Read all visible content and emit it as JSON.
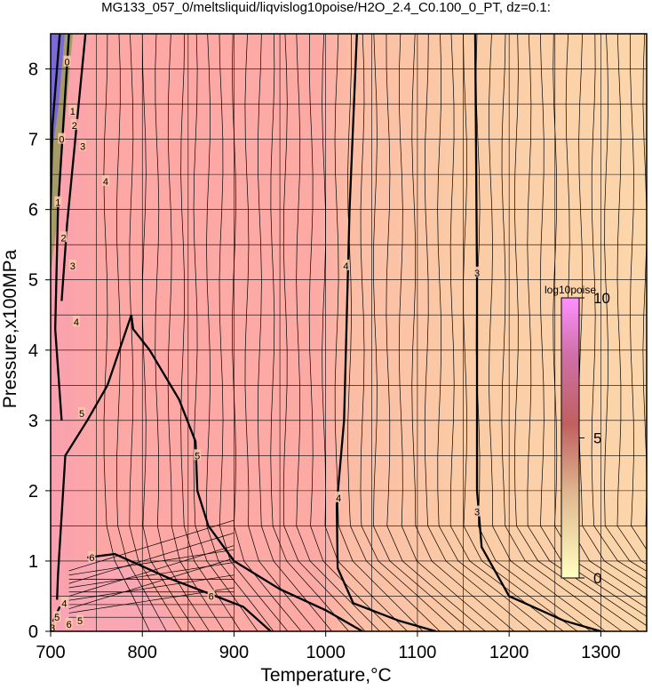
{
  "chart_data": {
    "type": "contour",
    "title": "MG133_057_0/meltsliquid/liqvislog10poise/H2O_2.4_C0.100_0_PT, dz=0.1:",
    "xlabel": "Temperature,°C",
    "ylabel": "Pressure,x100MPa",
    "xlim": [
      700,
      1350
    ],
    "ylim": [
      0,
      8.5
    ],
    "x_ticks": [
      "700",
      "800",
      "900",
      "1000",
      "1100",
      "1200",
      "1300"
    ],
    "y_ticks": [
      "0",
      "1",
      "2",
      "3",
      "4",
      "5",
      "6",
      "7",
      "8"
    ],
    "x_gridlines": [
      700,
      750,
      800,
      850,
      900,
      950,
      1000,
      1050,
      1100,
      1150,
      1200,
      1250,
      1300,
      1350
    ],
    "y_gridlines": [
      0,
      0.5,
      1,
      1.5,
      2,
      2.5,
      3,
      3.5,
      4,
      4.5,
      5,
      5.5,
      6,
      6.5,
      7,
      7.5,
      8
    ],
    "grid": true,
    "contour_interval": 0.1,
    "colorbar": {
      "label": "log10poise",
      "ticks": [
        "0",
        "5",
        "10"
      ],
      "range": [
        0,
        10
      ],
      "placement": "inside-right",
      "colors": [
        "#ffffc0",
        "#c06060",
        "#c04090",
        "#6000a0"
      ]
    },
    "colors": {
      "fill_warm": "#fbd2a6",
      "fill_pink": "#fdaaa5",
      "fill_low": "#f6a6bb",
      "fill_high": "#7b6ad6",
      "contour": "#000000"
    },
    "bold_contours": [
      {
        "level": "6",
        "points": [
          [
            704,
            0.0
          ],
          [
            703,
            0.15
          ],
          [
            710,
            0.35
          ]
        ]
      },
      {
        "level": "5",
        "points": [
          [
            707,
            0.45
          ],
          [
            708,
            0.8
          ],
          [
            716,
            2.5
          ],
          [
            740,
            3.0
          ],
          [
            762,
            3.5
          ],
          [
            788,
            4.5
          ],
          [
            790,
            4.3
          ],
          [
            808,
            4.0
          ],
          [
            840,
            3.3
          ],
          [
            858,
            2.7
          ],
          [
            860,
            2.0
          ],
          [
            872,
            1.5
          ],
          [
            900,
            1.0
          ],
          [
            950,
            0.6
          ],
          [
            1000,
            0.3
          ],
          [
            1040,
            0.0
          ]
        ]
      },
      {
        "level": "6",
        "points": [
          [
            740,
            1.05
          ],
          [
            770,
            1.1
          ],
          [
            830,
            0.75
          ],
          [
            880,
            0.5
          ],
          [
            910,
            0.35
          ],
          [
            940,
            0.0
          ]
        ]
      },
      {
        "level": "4",
        "points": [
          [
            1034,
            8.5
          ],
          [
            1026,
            6.0
          ],
          [
            1020,
            3.0
          ],
          [
            1012,
            1.8
          ],
          [
            1013,
            0.9
          ],
          [
            1030,
            0.4
          ],
          [
            1080,
            0.15
          ],
          [
            1120,
            0.0
          ]
        ]
      },
      {
        "level": "3",
        "points": [
          [
            1163,
            8.5
          ],
          [
            1165,
            5.0
          ],
          [
            1165,
            2.0
          ],
          [
            1170,
            1.2
          ],
          [
            1200,
            0.5
          ],
          [
            1260,
            0.15
          ],
          [
            1300,
            0.0
          ]
        ]
      },
      {
        "level": "4",
        "points": [
          [
            720,
            8.5
          ],
          [
            708,
            6.0
          ],
          [
            705,
            4.3
          ],
          [
            712,
            3.0
          ]
        ]
      },
      {
        "level": "3",
        "points": [
          [
            738,
            8.5
          ],
          [
            718,
            5.8
          ],
          [
            712,
            4.7
          ]
        ]
      },
      {
        "level": "2",
        "points": [
          [
            710,
            8.5
          ],
          [
            702,
            7.2
          ],
          [
            700,
            6.0
          ]
        ]
      }
    ],
    "contour_labels": [
      {
        "text": "4",
        "x": 1022,
        "y": 5.2
      },
      {
        "text": "4",
        "x": 1014,
        "y": 1.9
      },
      {
        "text": "3",
        "x": 1165,
        "y": 5.1
      },
      {
        "text": "3",
        "x": 1165,
        "y": 1.7
      },
      {
        "text": "5",
        "x": 734,
        "y": 3.1
      },
      {
        "text": "5",
        "x": 860,
        "y": 2.5
      },
      {
        "text": "6",
        "x": 745,
        "y": 1.05
      },
      {
        "text": "6",
        "x": 875,
        "y": 0.5
      },
      {
        "text": "4",
        "x": 728,
        "y": 4.4
      },
      {
        "text": "3",
        "x": 724,
        "y": 5.2
      },
      {
        "text": "2",
        "x": 714,
        "y": 5.6
      },
      {
        "text": "1",
        "x": 708,
        "y": 6.1
      },
      {
        "text": "4",
        "x": 760,
        "y": 6.4
      },
      {
        "text": "3",
        "x": 735,
        "y": 6.9
      },
      {
        "text": "2",
        "x": 726,
        "y": 7.2
      },
      {
        "text": "1",
        "x": 724,
        "y": 7.4
      },
      {
        "text": "0",
        "x": 712,
        "y": 7.0
      },
      {
        "text": "0",
        "x": 718,
        "y": 8.1
      },
      {
        "text": "4",
        "x": 715,
        "y": 0.4
      },
      {
        "text": "5",
        "x": 707,
        "y": 0.2
      },
      {
        "text": "6",
        "x": 720,
        "y": 0.1
      },
      {
        "text": "5",
        "x": 732,
        "y": 0.15
      },
      {
        "text": "3",
        "x": 702,
        "y": 0.05
      }
    ]
  }
}
